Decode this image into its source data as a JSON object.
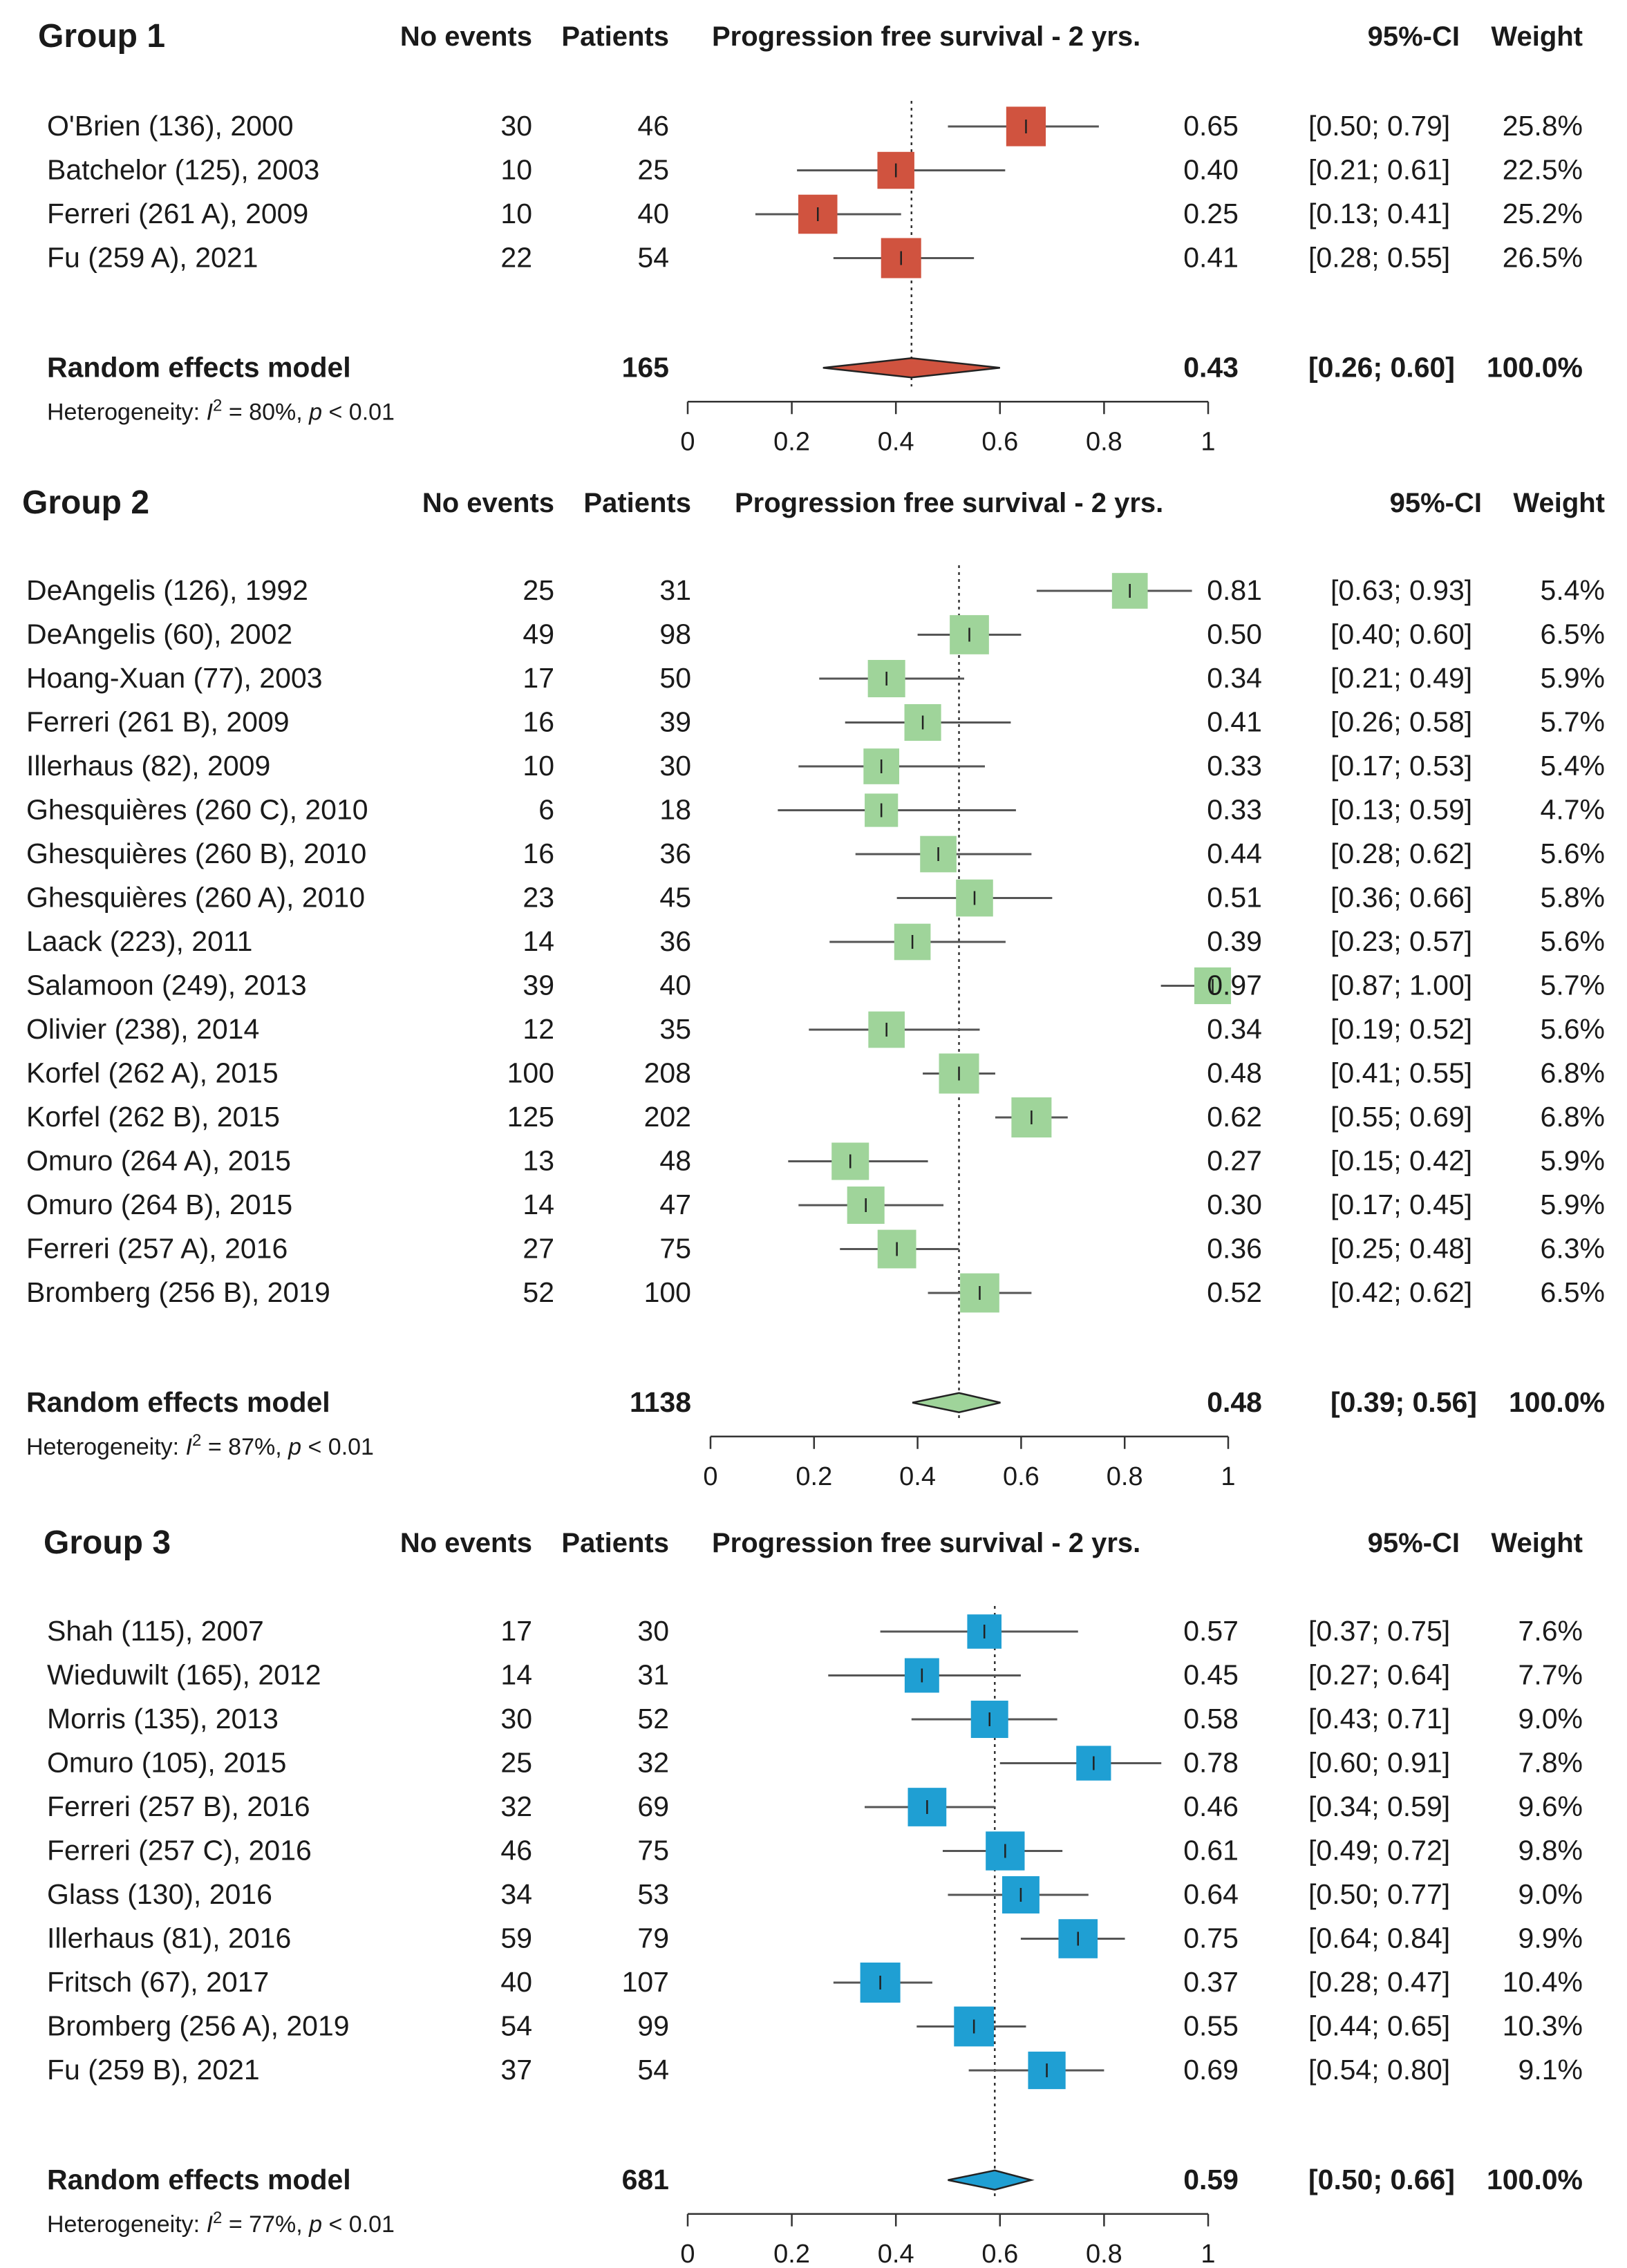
{
  "chart_data": [
    {
      "type": "forest",
      "title": "Group 1",
      "headers": {
        "events": "No events",
        "patients": "Patients",
        "plot": "Progression free survival - 2 yrs.",
        "ci": "95%-CI",
        "weight": "Weight"
      },
      "color": "#d0533f",
      "xlim": [
        0,
        1
      ],
      "ticks": [
        "0",
        "0.2",
        "0.4",
        "0.6",
        "0.8",
        "1"
      ],
      "studies": [
        {
          "name": "O'Brien (136), 2000",
          "events": "30",
          "patients": "46",
          "est": "0.65",
          "ci": "[0.50; 0.79]",
          "weight": "25.8%",
          "value": 0.65,
          "low": 0.5,
          "high": 0.79
        },
        {
          "name": "Batchelor (125), 2003",
          "events": "10",
          "patients": "25",
          "est": "0.40",
          "ci": "[0.21; 0.61]",
          "weight": "22.5%",
          "value": 0.4,
          "low": 0.21,
          "high": 0.61
        },
        {
          "name": "Ferreri (261 A), 2009",
          "events": "10",
          "patients": "40",
          "est": "0.25",
          "ci": "[0.13; 0.41]",
          "weight": "25.2%",
          "value": 0.25,
          "low": 0.13,
          "high": 0.41
        },
        {
          "name": "Fu (259 A), 2021",
          "events": "22",
          "patients": "54",
          "est": "0.41",
          "ci": "[0.28; 0.55]",
          "weight": "26.5%",
          "value": 0.41,
          "low": 0.28,
          "high": 0.55
        }
      ],
      "summary": {
        "label": "Random effects model",
        "patients": "165",
        "est": "0.43",
        "ci": "[0.26; 0.60]",
        "weight": "100.0%",
        "value": 0.43,
        "low": 0.26,
        "high": 0.6
      },
      "heterogeneity": {
        "prefix": "Heterogeneity: ",
        "i": "I",
        "sup": "2",
        "mid": " = 80%, ",
        "p": "p",
        "suffix": " < 0.01"
      }
    },
    {
      "type": "forest",
      "title": "Group 2",
      "headers": {
        "events": "No events",
        "patients": "Patients",
        "plot": "Progression free survival - 2 yrs.",
        "ci": "95%-CI",
        "weight": "Weight"
      },
      "color": "#9fd49a",
      "xlim": [
        0,
        1
      ],
      "ticks": [
        "0",
        "0.2",
        "0.4",
        "0.6",
        "0.8",
        "1"
      ],
      "studies": [
        {
          "name": "DeAngelis (126), 1992",
          "events": "25",
          "patients": "31",
          "est": "0.81",
          "ci": "[0.63; 0.93]",
          "weight": "5.4%",
          "value": 0.81,
          "low": 0.63,
          "high": 0.93
        },
        {
          "name": "DeAngelis (60), 2002",
          "events": "49",
          "patients": "98",
          "est": "0.50",
          "ci": "[0.40; 0.60]",
          "weight": "6.5%",
          "value": 0.5,
          "low": 0.4,
          "high": 0.6
        },
        {
          "name": "Hoang-Xuan (77), 2003",
          "events": "17",
          "patients": "50",
          "est": "0.34",
          "ci": "[0.21; 0.49]",
          "weight": "5.9%",
          "value": 0.34,
          "low": 0.21,
          "high": 0.49
        },
        {
          "name": "Ferreri (261 B), 2009",
          "events": "16",
          "patients": "39",
          "est": "0.41",
          "ci": "[0.26; 0.58]",
          "weight": "5.7%",
          "value": 0.41,
          "low": 0.26,
          "high": 0.58
        },
        {
          "name": "Illerhaus (82), 2009",
          "events": "10",
          "patients": "30",
          "est": "0.33",
          "ci": "[0.17; 0.53]",
          "weight": "5.4%",
          "value": 0.33,
          "low": 0.17,
          "high": 0.53
        },
        {
          "name": "Ghesquières (260 C), 2010",
          "events": "6",
          "patients": "18",
          "est": "0.33",
          "ci": "[0.13; 0.59]",
          "weight": "4.7%",
          "value": 0.33,
          "low": 0.13,
          "high": 0.59
        },
        {
          "name": "Ghesquières (260 B), 2010",
          "events": "16",
          "patients": "36",
          "est": "0.44",
          "ci": "[0.28; 0.62]",
          "weight": "5.6%",
          "value": 0.44,
          "low": 0.28,
          "high": 0.62
        },
        {
          "name": "Ghesquières (260 A), 2010",
          "events": "23",
          "patients": "45",
          "est": "0.51",
          "ci": "[0.36; 0.66]",
          "weight": "5.8%",
          "value": 0.51,
          "low": 0.36,
          "high": 0.66
        },
        {
          "name": "Laack (223), 2011",
          "events": "14",
          "patients": "36",
          "est": "0.39",
          "ci": "[0.23; 0.57]",
          "weight": "5.6%",
          "value": 0.39,
          "low": 0.23,
          "high": 0.57
        },
        {
          "name": "Salamoon (249), 2013",
          "events": "39",
          "patients": "40",
          "est": "0.97",
          "ci": "[0.87; 1.00]",
          "weight": "5.7%",
          "value": 0.97,
          "low": 0.87,
          "high": 1.0
        },
        {
          "name": "Olivier (238), 2014",
          "events": "12",
          "patients": "35",
          "est": "0.34",
          "ci": "[0.19; 0.52]",
          "weight": "5.6%",
          "value": 0.34,
          "low": 0.19,
          "high": 0.52
        },
        {
          "name": "Korfel (262 A), 2015",
          "events": "100",
          "patients": "208",
          "est": "0.48",
          "ci": "[0.41; 0.55]",
          "weight": "6.8%",
          "value": 0.48,
          "low": 0.41,
          "high": 0.55
        },
        {
          "name": "Korfel (262 B), 2015",
          "events": "125",
          "patients": "202",
          "est": "0.62",
          "ci": "[0.55; 0.69]",
          "weight": "6.8%",
          "value": 0.62,
          "low": 0.55,
          "high": 0.69
        },
        {
          "name": "Omuro (264 A), 2015",
          "events": "13",
          "patients": "48",
          "est": "0.27",
          "ci": "[0.15; 0.42]",
          "weight": "5.9%",
          "value": 0.27,
          "low": 0.15,
          "high": 0.42
        },
        {
          "name": "Omuro (264 B), 2015",
          "events": "14",
          "patients": "47",
          "est": "0.30",
          "ci": "[0.17; 0.45]",
          "weight": "5.9%",
          "value": 0.3,
          "low": 0.17,
          "high": 0.45
        },
        {
          "name": "Ferreri (257 A), 2016",
          "events": "27",
          "patients": "75",
          "est": "0.36",
          "ci": "[0.25; 0.48]",
          "weight": "6.3%",
          "value": 0.36,
          "low": 0.25,
          "high": 0.48
        },
        {
          "name": "Bromberg (256 B), 2019",
          "events": "52",
          "patients": "100",
          "est": "0.52",
          "ci": "[0.42; 0.62]",
          "weight": "6.5%",
          "value": 0.52,
          "low": 0.42,
          "high": 0.62
        }
      ],
      "summary": {
        "label": "Random effects model",
        "patients": "1138",
        "est": "0.48",
        "ci": "[0.39; 0.56]",
        "weight": "100.0%",
        "value": 0.48,
        "low": 0.39,
        "high": 0.56
      },
      "heterogeneity": {
        "prefix": "Heterogeneity: ",
        "i": "I",
        "sup": "2",
        "mid": " = 87%, ",
        "p": "p",
        "suffix": " < 0.01"
      }
    },
    {
      "type": "forest",
      "title": "Group 3",
      "headers": {
        "events": "No events",
        "patients": "Patients",
        "plot": "Progression free survival - 2 yrs.",
        "ci": "95%-CI",
        "weight": "Weight"
      },
      "color": "#1f9fd3",
      "xlim": [
        0,
        1
      ],
      "ticks": [
        "0",
        "0.2",
        "0.4",
        "0.6",
        "0.8",
        "1"
      ],
      "studies": [
        {
          "name": "Shah (115), 2007",
          "events": "17",
          "patients": "30",
          "est": "0.57",
          "ci": "[0.37; 0.75]",
          "weight": "7.6%",
          "value": 0.57,
          "low": 0.37,
          "high": 0.75
        },
        {
          "name": "Wieduwilt (165), 2012",
          "events": "14",
          "patients": "31",
          "est": "0.45",
          "ci": "[0.27; 0.64]",
          "weight": "7.7%",
          "value": 0.45,
          "low": 0.27,
          "high": 0.64
        },
        {
          "name": "Morris (135), 2013",
          "events": "30",
          "patients": "52",
          "est": "0.58",
          "ci": "[0.43; 0.71]",
          "weight": "9.0%",
          "value": 0.58,
          "low": 0.43,
          "high": 0.71
        },
        {
          "name": "Omuro (105), 2015",
          "events": "25",
          "patients": "32",
          "est": "0.78",
          "ci": "[0.60; 0.91]",
          "weight": "7.8%",
          "value": 0.78,
          "low": 0.6,
          "high": 0.91
        },
        {
          "name": "Ferreri (257 B), 2016",
          "events": "32",
          "patients": "69",
          "est": "0.46",
          "ci": "[0.34; 0.59]",
          "weight": "9.6%",
          "value": 0.46,
          "low": 0.34,
          "high": 0.59
        },
        {
          "name": "Ferreri (257 C), 2016",
          "events": "46",
          "patients": "75",
          "est": "0.61",
          "ci": "[0.49; 0.72]",
          "weight": "9.8%",
          "value": 0.61,
          "low": 0.49,
          "high": 0.72
        },
        {
          "name": "Glass (130), 2016",
          "events": "34",
          "patients": "53",
          "est": "0.64",
          "ci": "[0.50; 0.77]",
          "weight": "9.0%",
          "value": 0.64,
          "low": 0.5,
          "high": 0.77
        },
        {
          "name": "Illerhaus (81), 2016",
          "events": "59",
          "patients": "79",
          "est": "0.75",
          "ci": "[0.64; 0.84]",
          "weight": "9.9%",
          "value": 0.75,
          "low": 0.64,
          "high": 0.84
        },
        {
          "name": "Fritsch (67), 2017",
          "events": "40",
          "patients": "107",
          "est": "0.37",
          "ci": "[0.28; 0.47]",
          "weight": "10.4%",
          "value": 0.37,
          "low": 0.28,
          "high": 0.47
        },
        {
          "name": "Bromberg (256 A), 2019",
          "events": "54",
          "patients": "99",
          "est": "0.55",
          "ci": "[0.44; 0.65]",
          "weight": "10.3%",
          "value": 0.55,
          "low": 0.44,
          "high": 0.65
        },
        {
          "name": "Fu (259  B), 2021",
          "events": "37",
          "patients": "54",
          "est": "0.69",
          "ci": "[0.54; 0.80]",
          "weight": "9.1%",
          "value": 0.69,
          "low": 0.54,
          "high": 0.8
        }
      ],
      "summary": {
        "label": "Random effects model",
        "patients": "681",
        "est": "0.59",
        "ci": "[0.50; 0.66]",
        "weight": "100.0%",
        "value": 0.59,
        "low": 0.5,
        "high": 0.66
      },
      "heterogeneity": {
        "prefix": "Heterogeneity: ",
        "i": "I",
        "sup": "2",
        "mid": " = 77%, ",
        "p": "p",
        "suffix": " < 0.01"
      }
    }
  ]
}
